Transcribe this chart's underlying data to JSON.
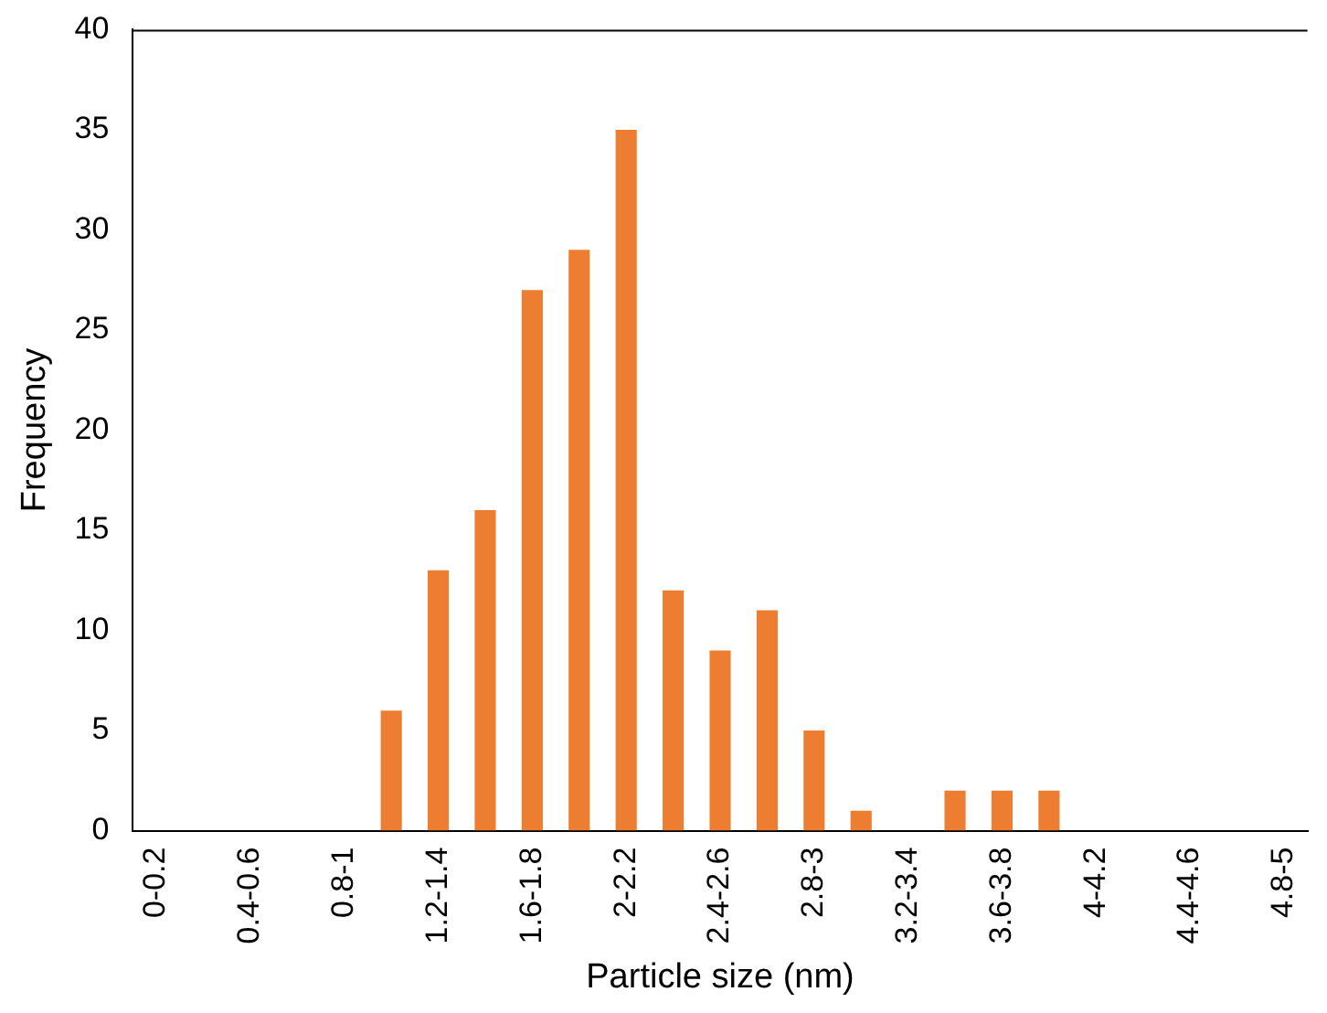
{
  "chart_data": {
    "type": "bar",
    "xlabel": "Particle size (nm)",
    "ylabel": "Frequency",
    "categories": [
      "0-0.2",
      null,
      "0.4-0.6",
      null,
      "0.8-1",
      null,
      "1.2-1.4",
      null,
      "1.6-1.8",
      null,
      "2-2.2",
      null,
      "2.4-2.6",
      null,
      "2.8-3",
      null,
      "3.2-3.4",
      null,
      "3.6-3.8",
      null,
      "4-4.2",
      null,
      "4.4-4.6",
      null,
      "4.8-5"
    ],
    "values": [
      0,
      0,
      0,
      0,
      0,
      6,
      13,
      16,
      27,
      29,
      35,
      12,
      9,
      11,
      5,
      1,
      0,
      2,
      2,
      2,
      0,
      0,
      0,
      0,
      0
    ],
    "color": "#ed7d31",
    "ylim": [
      0,
      40
    ],
    "yticks": [
      0,
      5,
      10,
      15,
      20,
      25,
      30,
      35,
      40
    ],
    "grid": false,
    "legend": false
  }
}
